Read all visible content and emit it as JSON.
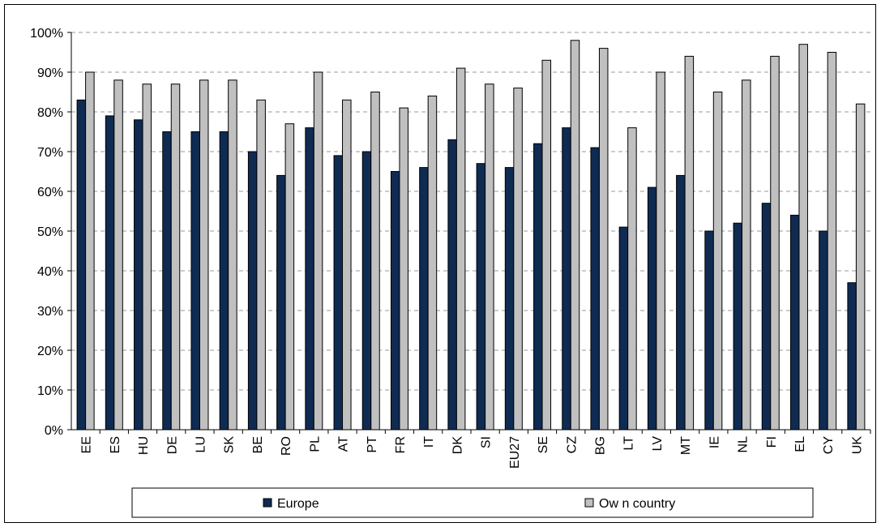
{
  "chart_data": {
    "type": "bar",
    "title": "",
    "xlabel": "",
    "ylabel": "",
    "ylim": [
      0,
      100
    ],
    "yticks": [
      "0%",
      "10%",
      "20%",
      "30%",
      "40%",
      "50%",
      "60%",
      "70%",
      "80%",
      "90%",
      "100%"
    ],
    "categories": [
      "EE",
      "ES",
      "HU",
      "DE",
      "LU",
      "SK",
      "BE",
      "RO",
      "PL",
      "AT",
      "PT",
      "FR",
      "IT",
      "DK",
      "SI",
      "EU27",
      "SE",
      "CZ",
      "BG",
      "LT",
      "LV",
      "MT",
      "IE",
      "NL",
      "FI",
      "EL",
      "CY",
      "UK"
    ],
    "series": [
      {
        "name": "Europe",
        "color": "#0f2b52",
        "values": [
          83,
          79,
          78,
          75,
          75,
          75,
          70,
          64,
          76,
          69,
          70,
          65,
          66,
          73,
          67,
          66,
          72,
          76,
          71,
          51,
          61,
          64,
          50,
          52,
          57,
          54,
          50,
          37
        ]
      },
      {
        "name": "Ow n country",
        "color": "#c0c0c0",
        "values": [
          90,
          88,
          87,
          87,
          88,
          88,
          83,
          77,
          90,
          83,
          85,
          81,
          84,
          91,
          87,
          86,
          93,
          98,
          96,
          76,
          90,
          94,
          85,
          88,
          94,
          97,
          95,
          82
        ]
      }
    ],
    "grid": "horizontal-dashed",
    "legend_position": "bottom"
  }
}
